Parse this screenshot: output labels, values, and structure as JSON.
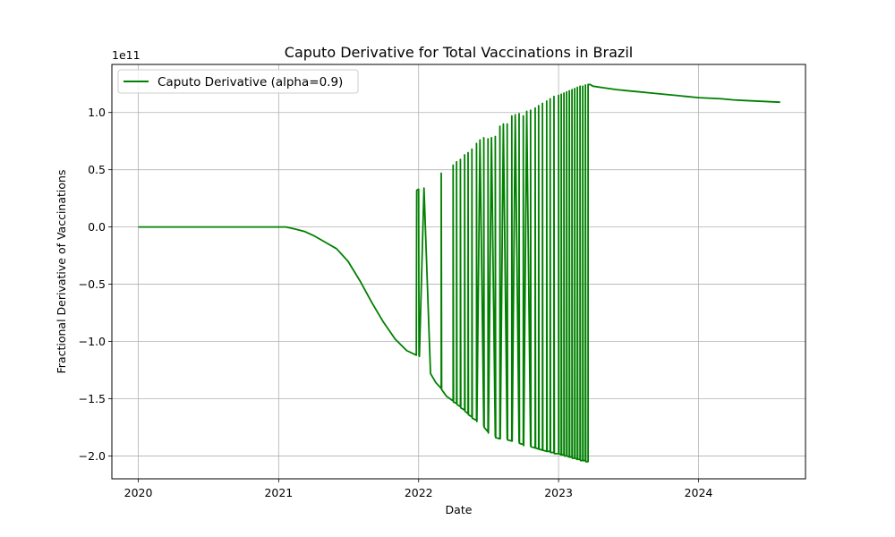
{
  "chart_data": {
    "type": "line",
    "title": "Caputo Derivative for Total Vaccinations in Brazil",
    "xlabel": "Date",
    "ylabel": "Fractional Derivative of Vaccinations",
    "y_offset_label": "1e11",
    "xlim": [
      "2019-10-24",
      "2024-10-06"
    ],
    "ylim": [
      -2.2,
      1.42
    ],
    "x_ticks": [
      {
        "date": "2020-01-01",
        "label": "2020"
      },
      {
        "date": "2021-01-01",
        "label": "2021"
      },
      {
        "date": "2022-01-01",
        "label": "2022"
      },
      {
        "date": "2023-01-01",
        "label": "2023"
      },
      {
        "date": "2024-01-01",
        "label": "2024"
      }
    ],
    "y_ticks": [
      {
        "value": 1.0,
        "label": "1.0"
      },
      {
        "value": 0.5,
        "label": "0.5"
      },
      {
        "value": 0.0,
        "label": "0.0"
      },
      {
        "value": -0.5,
        "label": "−0.5"
      },
      {
        "value": -1.0,
        "label": "−1.0"
      },
      {
        "value": -1.5,
        "label": "−1.5"
      },
      {
        "value": -2.0,
        "label": "−2.0"
      }
    ],
    "grid": true,
    "legend_position": "top-left",
    "series": [
      {
        "name": "Caputo Derivative (alpha=0.9)",
        "color": "#008000",
        "x": [
          "2020-01-01",
          "2021-01-20",
          "2021-02-15",
          "2021-03-10",
          "2021-04-05",
          "2021-05-01",
          "2021-06-01",
          "2021-07-01",
          "2021-08-01",
          "2021-09-01",
          "2021-10-01",
          "2021-11-01",
          "2021-12-01",
          "2021-12-26",
          "2021-12-27",
          "2022-01-01",
          "2022-01-02",
          "2022-01-03",
          "2022-01-15",
          "2022-02-01",
          "2022-02-15",
          "2022-03-01",
          "2022-03-01",
          "2022-03-02",
          "2022-03-15",
          "2022-04-01",
          "2022-04-01",
          "2022-04-02",
          "2022-04-10",
          "2022-04-10",
          "2022-04-11",
          "2022-04-20",
          "2022-04-20",
          "2022-04-21",
          "2022-05-01",
          "2022-05-01",
          "2022-05-02",
          "2022-05-10",
          "2022-05-10",
          "2022-05-11",
          "2022-05-20",
          "2022-05-20",
          "2022-05-21",
          "2022-06-01",
          "2022-06-01",
          "2022-06-02",
          "2022-06-10",
          "2022-06-20",
          "2022-06-20",
          "2022-06-21",
          "2022-07-01",
          "2022-07-01",
          "2022-07-02",
          "2022-07-10",
          "2022-07-20",
          "2022-07-20",
          "2022-07-21",
          "2022-08-01",
          "2022-08-01",
          "2022-08-02",
          "2022-08-10",
          "2022-08-20",
          "2022-08-20",
          "2022-08-21",
          "2022-09-01",
          "2022-09-01",
          "2022-09-02",
          "2022-09-10",
          "2022-09-20",
          "2022-09-20",
          "2022-09-21",
          "2022-10-01",
          "2022-10-01",
          "2022-10-02",
          "2022-10-10",
          "2022-10-20",
          "2022-10-20",
          "2022-10-21",
          "2022-11-01",
          "2022-11-01",
          "2022-11-02",
          "2022-11-10",
          "2022-11-10",
          "2022-11-11",
          "2022-11-20",
          "2022-11-20",
          "2022-11-21",
          "2022-12-01",
          "2022-12-01",
          "2022-12-02",
          "2022-12-10",
          "2022-12-10",
          "2022-12-11",
          "2022-12-20",
          "2022-12-20",
          "2022-12-21",
          "2023-01-01",
          "2023-01-01",
          "2023-01-02",
          "2023-01-08",
          "2023-01-08",
          "2023-01-09",
          "2023-01-15",
          "2023-01-15",
          "2023-01-16",
          "2023-01-22",
          "2023-01-22",
          "2023-01-23",
          "2023-01-29",
          "2023-01-29",
          "2023-01-30",
          "2023-02-05",
          "2023-02-05",
          "2023-02-06",
          "2023-02-12",
          "2023-02-12",
          "2023-02-13",
          "2023-02-19",
          "2023-02-19",
          "2023-02-20",
          "2023-02-26",
          "2023-02-26",
          "2023-02-27",
          "2023-03-05",
          "2023-03-05",
          "2023-03-06",
          "2023-03-12",
          "2023-03-12",
          "2023-03-13",
          "2023-03-19",
          "2023-03-19",
          "2023-03-24",
          "2023-04-01",
          "2023-05-01",
          "2023-06-01",
          "2023-07-01",
          "2023-08-01",
          "2023-09-01",
          "2023-10-01",
          "2023-11-01",
          "2023-12-01",
          "2024-01-01",
          "2024-02-01",
          "2024-03-01",
          "2024-04-01",
          "2024-05-01",
          "2024-06-01",
          "2024-07-01",
          "2024-08-01"
        ],
        "y": [
          0.0,
          0.0,
          -0.02,
          -0.04,
          -0.08,
          -0.13,
          -0.19,
          -0.3,
          -0.47,
          -0.66,
          -0.83,
          -0.98,
          -1.08,
          -1.12,
          0.32,
          0.33,
          -1.12,
          -1.13,
          0.34,
          -1.28,
          -1.36,
          -1.41,
          0.47,
          -1.42,
          -1.48,
          -1.52,
          0.54,
          -1.53,
          -1.54,
          0.57,
          -1.55,
          -1.57,
          0.59,
          -1.58,
          -1.6,
          0.63,
          -1.61,
          -1.63,
          0.65,
          -1.64,
          -1.66,
          0.68,
          -1.67,
          -1.69,
          0.73,
          -1.7,
          0.76,
          -1.74,
          0.78,
          -1.75,
          -1.79,
          0.77,
          -1.8,
          0.78,
          -1.83,
          0.79,
          -1.84,
          -1.85,
          0.88,
          -1.85,
          0.9,
          -1.85,
          0.9,
          -1.86,
          -1.87,
          0.97,
          -1.87,
          0.98,
          -1.88,
          0.99,
          -1.89,
          -1.9,
          0.97,
          -1.91,
          1.01,
          -1.91,
          1.02,
          -1.92,
          -1.93,
          1.04,
          -1.93,
          -1.94,
          1.06,
          -1.94,
          -1.95,
          1.08,
          -1.95,
          -1.96,
          1.1,
          -1.96,
          -1.96,
          1.12,
          -1.97,
          -1.97,
          1.14,
          -1.98,
          -1.98,
          1.15,
          -1.98,
          -1.99,
          1.16,
          -1.99,
          -1.99,
          1.17,
          -2.0,
          -2.0,
          1.18,
          -2.0,
          -2.01,
          1.19,
          -2.01,
          -2.01,
          1.2,
          -2.02,
          -2.02,
          1.21,
          -2.02,
          -2.03,
          1.22,
          -2.03,
          -2.03,
          1.23,
          -2.04,
          -2.04,
          1.23,
          -2.04,
          -2.04,
          1.24,
          -2.05,
          -2.05,
          1.245,
          1.245,
          1.23,
          1.215,
          1.2,
          1.19,
          1.18,
          1.17,
          1.16,
          1.15,
          1.14,
          1.13,
          1.125,
          1.12,
          1.11,
          1.105,
          1.1,
          1.095,
          1.09
        ]
      }
    ]
  }
}
